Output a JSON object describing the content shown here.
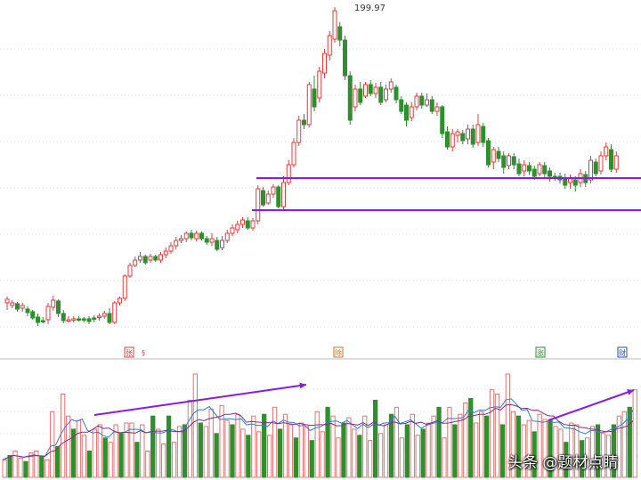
{
  "chart_data": [
    {
      "type": "candlestick",
      "title": "",
      "annotations": {
        "peak_label": "199.97"
      },
      "event_markers": [
        "张",
        "§",
        "除",
        "涨",
        "财"
      ],
      "support_lines": [
        "upper",
        "lower"
      ],
      "grid": true,
      "up_color": "#e23c3c",
      "down_color": "#2f8f2f",
      "line_color": "#8a1be2",
      "candles": [
        [
          0,
          340,
          336,
          348,
          333
        ],
        [
          1,
          343,
          340,
          346,
          337
        ],
        [
          2,
          341,
          347,
          350,
          339
        ],
        [
          3,
          346,
          343,
          350,
          340
        ],
        [
          4,
          347,
          351,
          355,
          344
        ],
        [
          5,
          350,
          357,
          359,
          348
        ],
        [
          6,
          356,
          362,
          366,
          352
        ],
        [
          7,
          360,
          361,
          363,
          356
        ],
        [
          8,
          359,
          344,
          364,
          340
        ],
        [
          9,
          345,
          337,
          349,
          332
        ],
        [
          10,
          338,
          352,
          356,
          336
        ],
        [
          11,
          352,
          360,
          363,
          348
        ],
        [
          12,
          360,
          359,
          362,
          355
        ],
        [
          13,
          359,
          358,
          362,
          355
        ],
        [
          14,
          358,
          358,
          361,
          355
        ],
        [
          15,
          358,
          359,
          362,
          356
        ],
        [
          16,
          358,
          361,
          364,
          355
        ],
        [
          17,
          357,
          358,
          362,
          354
        ],
        [
          18,
          356,
          355,
          360,
          352
        ],
        [
          19,
          355,
          352,
          358,
          349
        ],
        [
          20,
          352,
          362,
          364,
          346
        ],
        [
          21,
          362,
          340,
          364,
          338
        ],
        [
          22,
          340,
          335,
          343,
          333
        ],
        [
          23,
          335,
          310,
          338,
          308
        ],
        [
          24,
          310,
          298,
          312,
          295
        ],
        [
          25,
          298,
          292,
          300,
          288
        ],
        [
          26,
          292,
          288,
          295,
          283
        ],
        [
          27,
          288,
          295,
          297,
          286
        ],
        [
          28,
          292,
          288,
          295,
          285
        ],
        [
          29,
          288,
          292,
          294,
          286
        ],
        [
          30,
          292,
          286,
          295,
          283
        ],
        [
          31,
          286,
          282,
          290,
          278
        ],
        [
          32,
          282,
          276,
          285,
          272
        ],
        [
          33,
          276,
          270,
          280,
          266
        ],
        [
          34,
          270,
          268,
          273,
          264
        ],
        [
          35,
          268,
          262,
          272,
          260
        ],
        [
          36,
          262,
          267,
          270,
          258
        ],
        [
          37,
          268,
          262,
          271,
          259
        ],
        [
          38,
          262,
          268,
          270,
          260
        ],
        [
          39,
          268,
          272,
          275,
          265
        ],
        [
          40,
          272,
          268,
          276,
          262
        ],
        [
          41,
          270,
          280,
          282,
          266
        ],
        [
          42,
          278,
          270,
          281,
          265
        ],
        [
          43,
          270,
          262,
          273,
          258
        ],
        [
          44,
          262,
          256,
          265,
          252
        ],
        [
          45,
          258,
          252,
          262,
          248
        ],
        [
          46,
          252,
          247,
          256,
          244
        ],
        [
          47,
          248,
          256,
          258,
          244
        ],
        [
          48,
          256,
          248,
          259,
          245
        ],
        [
          49,
          248,
          212,
          252,
          208
        ],
        [
          50,
          214,
          230,
          232,
          210
        ],
        [
          51,
          228,
          218,
          230,
          214
        ],
        [
          52,
          218,
          210,
          222,
          207
        ],
        [
          53,
          210,
          232,
          234,
          208
        ],
        [
          54,
          232,
          205,
          236,
          198
        ],
        [
          55,
          205,
          185,
          208,
          180
        ],
        [
          56,
          185,
          160,
          188,
          155
        ],
        [
          57,
          160,
          135,
          164,
          130
        ],
        [
          58,
          135,
          140,
          145,
          128
        ],
        [
          59,
          140,
          95,
          143,
          92
        ],
        [
          60,
          100,
          120,
          125,
          85
        ],
        [
          61,
          110,
          80,
          115,
          75
        ],
        [
          62,
          82,
          60,
          88,
          55
        ],
        [
          63,
          62,
          40,
          68,
          35
        ],
        [
          64,
          44,
          12,
          48,
          8
        ],
        [
          65,
          30,
          45,
          52,
          25
        ],
        [
          66,
          45,
          85,
          90,
          40
        ],
        [
          67,
          85,
          135,
          140,
          80
        ],
        [
          68,
          120,
          100,
          125,
          95
        ],
        [
          69,
          100,
          115,
          118,
          92
        ],
        [
          70,
          108,
          95,
          110,
          92
        ],
        [
          71,
          95,
          105,
          108,
          90
        ],
        [
          72,
          105,
          98,
          110,
          93
        ],
        [
          73,
          98,
          115,
          118,
          92
        ],
        [
          74,
          112,
          100,
          115,
          95
        ],
        [
          75,
          100,
          92,
          104,
          88
        ],
        [
          76,
          98,
          112,
          116,
          95
        ],
        [
          77,
          112,
          125,
          128,
          108
        ],
        [
          78,
          118,
          135,
          142,
          115
        ],
        [
          79,
          132,
          120,
          136,
          115
        ],
        [
          80,
          120,
          108,
          124,
          104
        ],
        [
          81,
          108,
          118,
          122,
          104
        ],
        [
          82,
          118,
          112,
          120,
          105
        ],
        [
          83,
          112,
          125,
          128,
          108
        ],
        [
          84,
          125,
          120,
          130,
          115
        ],
        [
          85,
          120,
          150,
          155,
          118
        ],
        [
          86,
          148,
          165,
          168,
          142
        ],
        [
          87,
          165,
          150,
          170,
          145
        ],
        [
          88,
          152,
          148,
          160,
          145
        ],
        [
          89,
          150,
          158,
          162,
          146
        ],
        [
          90,
          156,
          145,
          162,
          140
        ],
        [
          91,
          145,
          162,
          166,
          140
        ],
        [
          92,
          160,
          140,
          164,
          128
        ],
        [
          93,
          142,
          160,
          165,
          138
        ],
        [
          94,
          158,
          185,
          188,
          155
        ],
        [
          95,
          182,
          168,
          190,
          165
        ],
        [
          96,
          170,
          178,
          182,
          165
        ],
        [
          97,
          175,
          188,
          195,
          170
        ],
        [
          98,
          186,
          175,
          190,
          172
        ],
        [
          99,
          176,
          185,
          190,
          172
        ],
        [
          100,
          184,
          195,
          198,
          178
        ],
        [
          101,
          192,
          185,
          198,
          180
        ],
        [
          102,
          186,
          192,
          196,
          182
        ],
        [
          103,
          190,
          198,
          202,
          186
        ],
        [
          104,
          195,
          185,
          198,
          182
        ],
        [
          105,
          186,
          195,
          200,
          182
        ],
        [
          106,
          192,
          198,
          204,
          188
        ],
        [
          107,
          198,
          200,
          203,
          194
        ],
        [
          108,
          198,
          202,
          206,
          194
        ],
        [
          109,
          200,
          208,
          212,
          195
        ],
        [
          110,
          205,
          200,
          212,
          196
        ],
        [
          111,
          202,
          208,
          215,
          198
        ],
        [
          112,
          205,
          195,
          210,
          190
        ],
        [
          113,
          196,
          205,
          210,
          192
        ],
        [
          114,
          202,
          180,
          206,
          175
        ],
        [
          115,
          182,
          195,
          198,
          178
        ],
        [
          116,
          192,
          175,
          196,
          170
        ],
        [
          117,
          175,
          165,
          180,
          160
        ],
        [
          118,
          168,
          190,
          193,
          162
        ],
        [
          119,
          190,
          175,
          194,
          170
        ]
      ],
      "volume": [
        20,
        25,
        30,
        22,
        18,
        28,
        30,
        24,
        20,
        75,
        35,
        95,
        70,
        55,
        65,
        48,
        30,
        55,
        60,
        45,
        40,
        60,
        50,
        62,
        62,
        40,
        60,
        30,
        70,
        55,
        38,
        70,
        40,
        58,
        60,
        88,
        118,
        62,
        58,
        78,
        50,
        82,
        65,
        60,
        72,
        55,
        48,
        70,
        52,
        72,
        48,
        80,
        55,
        72,
        60,
        45,
        62,
        58,
        42,
        75,
        52,
        80,
        70,
        45,
        62,
        68,
        55,
        48,
        70,
        42,
        88,
        50,
        60,
        72,
        80,
        45,
        60,
        72,
        48,
        55,
        62,
        70,
        80,
        45,
        80,
        60,
        72,
        85,
        90,
        62,
        75,
        70,
        100,
        95,
        60,
        118,
        75,
        70,
        60,
        65,
        52,
        72,
        66,
        65,
        58,
        55,
        40,
        62,
        60,
        42,
        45,
        58,
        60,
        50,
        48,
        60,
        70,
        75,
        80,
        100
      ]
    }
  ],
  "watermark": "头条 @题材点睛"
}
